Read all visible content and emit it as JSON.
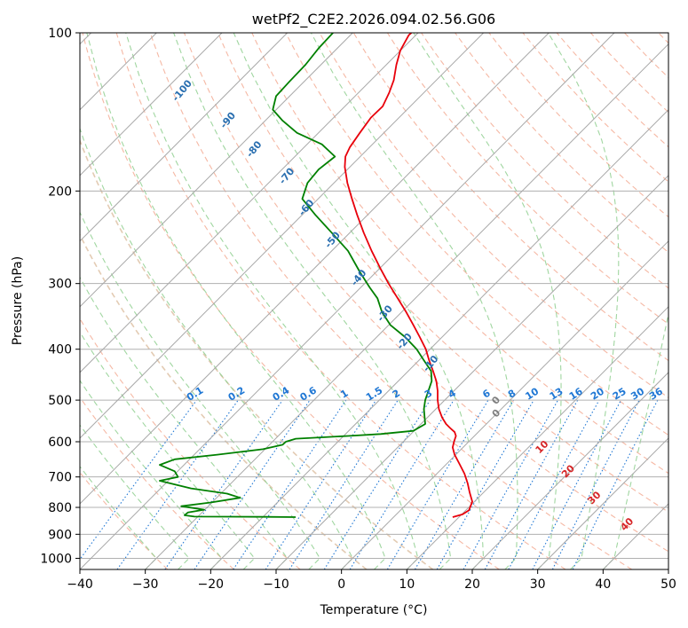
{
  "chart_data": {
    "type": "line",
    "title": "wetPf2_C2E2.2026.094.02.56.G06",
    "xlabel": "Temperature (°C)",
    "ylabel": "Pressure (hPa)",
    "xlim": [
      -40,
      50
    ],
    "ylim": [
      1050,
      100
    ],
    "y_scale": "log",
    "grid": true,
    "x_ticks": [
      -40,
      -30,
      -20,
      -10,
      0,
      10,
      20,
      30,
      40,
      50
    ],
    "y_ticks": [
      100,
      200,
      300,
      400,
      500,
      600,
      700,
      800,
      900,
      1000
    ],
    "colors": {
      "temperature": "#e8000b",
      "dewpoint": "#008000",
      "dry_adiabats": "#f2a085",
      "moist_adiabats": "#8fcf8f",
      "mixing_ratio": "#1f77d4",
      "isotherms": "#888888"
    },
    "series": [
      {
        "values": [
          [
            17.0,
            835
          ],
          [
            18.5,
            825
          ],
          [
            19.5,
            810
          ],
          [
            20.0,
            780
          ],
          [
            19.6,
            750
          ],
          [
            19.3,
            720
          ],
          [
            18.8,
            690
          ],
          [
            18.0,
            660
          ],
          [
            17.3,
            635
          ],
          [
            17.0,
            615
          ],
          [
            17.2,
            600
          ],
          [
            17.5,
            585
          ],
          [
            17.3,
            575
          ],
          [
            16.6,
            565
          ],
          [
            16.0,
            555
          ],
          [
            15.4,
            540
          ],
          [
            14.9,
            520
          ],
          [
            14.7,
            500
          ],
          [
            14.7,
            480
          ],
          [
            14.5,
            460
          ],
          [
            14.0,
            440
          ],
          [
            13.4,
            420
          ],
          [
            12.9,
            400
          ],
          [
            12.0,
            380
          ],
          [
            11.0,
            360
          ],
          [
            9.9,
            340
          ],
          [
            8.6,
            320
          ],
          [
            7.2,
            300
          ],
          [
            5.9,
            280
          ],
          [
            4.6,
            260
          ],
          [
            3.4,
            240
          ],
          [
            2.4,
            222
          ],
          [
            1.6,
            207
          ],
          [
            0.9,
            193
          ],
          [
            0.5,
            180
          ],
          [
            0.6,
            172
          ],
          [
            1.3,
            165
          ],
          [
            2.8,
            155
          ],
          [
            4.5,
            145
          ],
          [
            6.3,
            138
          ],
          [
            7.3,
            130
          ],
          [
            8.0,
            123
          ],
          [
            8.4,
            115
          ],
          [
            9.0,
            108
          ],
          [
            10.3,
            101
          ],
          [
            10.7,
            100
          ]
        ]
      },
      {
        "values": [
          [
            -7.0,
            835
          ],
          [
            -11.5,
            834
          ],
          [
            -22.5,
            833
          ],
          [
            -24.0,
            828
          ],
          [
            -23.5,
            818
          ],
          [
            -21.0,
            808
          ],
          [
            -24.5,
            796
          ],
          [
            -20.0,
            783
          ],
          [
            -15.5,
            767
          ],
          [
            -17.5,
            753
          ],
          [
            -23.0,
            736
          ],
          [
            -27.8,
            712
          ],
          [
            -25.0,
            700
          ],
          [
            -25.5,
            683
          ],
          [
            -27.8,
            664
          ],
          [
            -25.5,
            648
          ],
          [
            -19.0,
            635
          ],
          [
            -12.0,
            620
          ],
          [
            -9.0,
            608
          ],
          [
            -8.5,
            600
          ],
          [
            -7.0,
            592
          ],
          [
            1.0,
            585
          ],
          [
            6.0,
            580
          ],
          [
            11.0,
            572
          ],
          [
            12.8,
            555
          ],
          [
            12.6,
            520
          ],
          [
            12.8,
            500
          ],
          [
            13.3,
            480
          ],
          [
            13.8,
            460
          ],
          [
            13.7,
            440
          ],
          [
            12.6,
            420
          ],
          [
            11.5,
            400
          ],
          [
            9.8,
            380
          ],
          [
            7.5,
            360
          ],
          [
            6.2,
            340
          ],
          [
            5.5,
            320
          ],
          [
            4.3,
            305
          ],
          [
            2.8,
            285
          ],
          [
            1.0,
            260
          ],
          [
            -1.5,
            240
          ],
          [
            -4.0,
            222
          ],
          [
            -6.0,
            207
          ],
          [
            -5.2,
            193
          ],
          [
            -3.5,
            182
          ],
          [
            -1.0,
            172
          ],
          [
            -3.0,
            163
          ],
          [
            -6.8,
            155
          ],
          [
            -9.0,
            147
          ],
          [
            -10.5,
            140
          ],
          [
            -10.0,
            132
          ],
          [
            -8.0,
            124
          ],
          [
            -5.5,
            115
          ],
          [
            -3.5,
            107
          ],
          [
            -1.3,
            100
          ]
        ]
      }
    ],
    "moist_adiabat_labels": [
      "-100",
      "-90",
      "-80",
      "-70",
      "-60",
      "-50",
      "-40",
      "-30",
      "-20",
      "-10",
      "0"
    ],
    "mixing_ratio_labels": [
      "0.1",
      "0.2",
      "0.4",
      "0.6",
      "1",
      "1.5",
      "2",
      "3",
      "4",
      "6",
      "8",
      "10",
      "13",
      "16",
      "20",
      "25",
      "30",
      "36"
    ],
    "dry_adiabat_labels": [
      "0",
      "10",
      "20",
      "30",
      "40"
    ]
  }
}
